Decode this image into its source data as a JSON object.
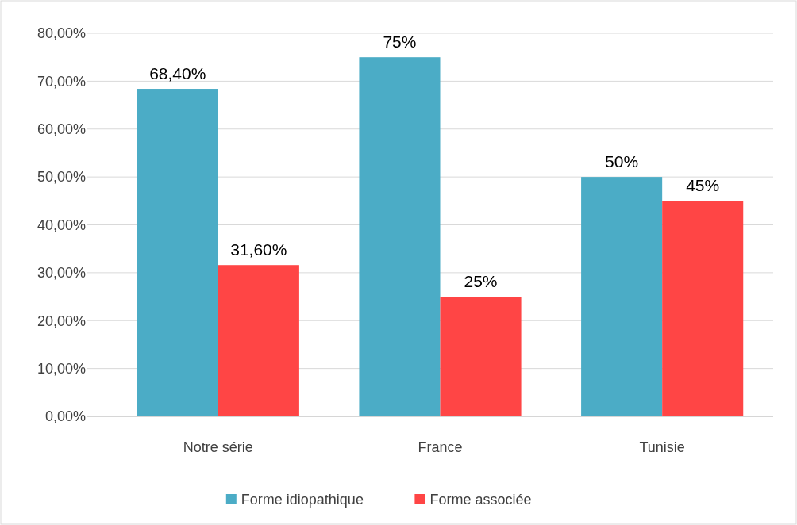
{
  "chart_data": {
    "type": "bar",
    "categories": [
      "Notre série",
      "France",
      "Tunisie"
    ],
    "series": [
      {
        "name": "Forme idiopathique",
        "color": "#4bacc6",
        "values": [
          68.4,
          75,
          50
        ],
        "value_labels": [
          "68,40%",
          "75%",
          "50%"
        ]
      },
      {
        "name": "Forme associée",
        "color": "#ff4545",
        "values": [
          31.6,
          25,
          45
        ],
        "value_labels": [
          "31,60%",
          "25%",
          "45%"
        ]
      }
    ],
    "ylim": [
      0,
      80
    ],
    "yticks": [
      {
        "value": 0,
        "label": "0,00%"
      },
      {
        "value": 10,
        "label": "10,00%"
      },
      {
        "value": 20,
        "label": "20,00%"
      },
      {
        "value": 30,
        "label": "30,00%"
      },
      {
        "value": 40,
        "label": "40,00%"
      },
      {
        "value": 50,
        "label": "50,00%"
      },
      {
        "value": 60,
        "label": "60,00%"
      },
      {
        "value": 70,
        "label": "70,00%"
      },
      {
        "value": 80,
        "label": "80,00%"
      }
    ],
    "grid": "y",
    "legend": "bottom"
  }
}
